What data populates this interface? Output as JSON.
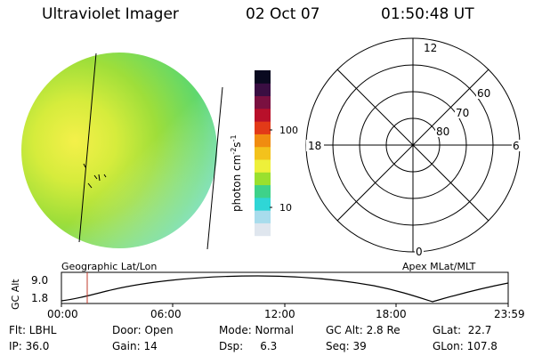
{
  "header": {
    "instrument": "Ultraviolet Imager",
    "date": "02 Oct 07",
    "time": "01:50:48 UT"
  },
  "colorbar": {
    "unit_label": "photon cm",
    "unit_exp1": "-2",
    "unit_s": "s",
    "unit_exp2": "-1",
    "ticks": [
      {
        "label": "100",
        "value": 100
      },
      {
        "label": "10",
        "value": 10
      }
    ],
    "colors": [
      "#ffffff",
      "#dfe6ee",
      "#a8dcec",
      "#2fd6d6",
      "#3ed28a",
      "#9ae02e",
      "#eef03a",
      "#f3c21c",
      "#f08c10",
      "#e23a18",
      "#b8102a",
      "#7a1040",
      "#3a0e42",
      "#0a0a20"
    ]
  },
  "polar_grid": {
    "hour_labels": {
      "top": "12",
      "left": "18",
      "right": "6",
      "bottom": "0"
    },
    "lat_labels": [
      "60",
      "70",
      "80"
    ],
    "caption": "Apex MLat/MLT"
  },
  "left_caption": "Geographic Lat/Lon",
  "altitude_plot": {
    "ylabel": "GC Alt",
    "yticks": [
      "9.0",
      "1.8"
    ],
    "xticks": [
      "00:00",
      "06:00",
      "12:00",
      "18:00",
      "23:59"
    ]
  },
  "info": {
    "flt": "Flt: LBHL",
    "ip": "IP: 36.0",
    "door": "Door: Open",
    "gain": "Gain: 14",
    "mode": "Mode: Normal",
    "dsp": "Dsp:     6.3",
    "gc_alt": "GC Alt: 2.8 Re",
    "seq": "Seq: 39",
    "glat": "GLat:  22.7",
    "glon": "GLon: 107.8"
  }
}
